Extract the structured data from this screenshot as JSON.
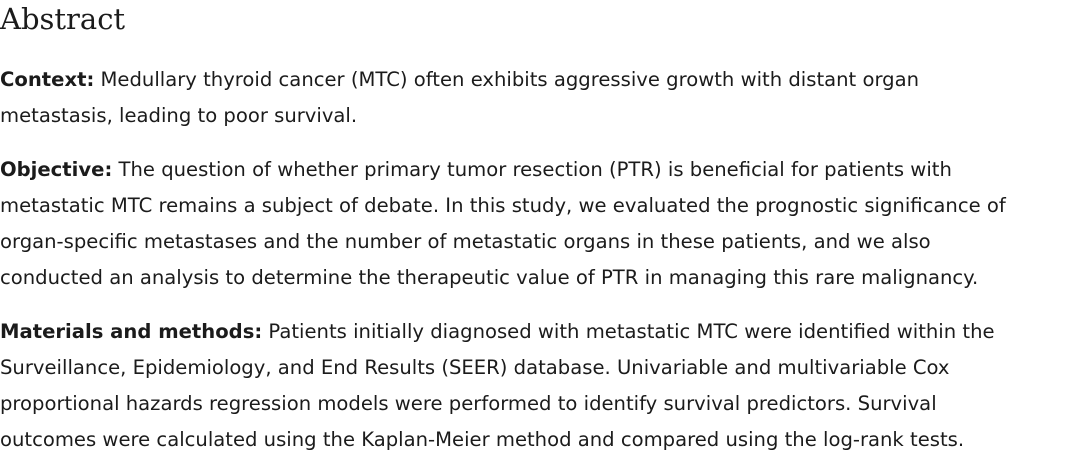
{
  "heading": "Abstract",
  "sections": {
    "context": {
      "label": "Context:",
      "lines": [
        " Medullary thyroid cancer (MTC) often exhibits aggressive growth with distant organ",
        "metastasis, leading to poor survival."
      ]
    },
    "objective": {
      "label": "Objective:",
      "lines": [
        " The question of whether primary tumor resection (PTR) is beneficial for patients with",
        "metastatic MTC remains a subject of debate. In this study, we evaluated the prognostic significance of",
        "organ-specific metastases and the number of metastatic organs in these patients, and we also",
        "conducted an analysis to determine the therapeutic value of PTR in managing this rare malignancy."
      ]
    },
    "methods": {
      "label": "Materials and methods:",
      "lines": [
        " Patients initially diagnosed with metastatic MTC were identified within the",
        "Surveillance, Epidemiology, and End Results (SEER) database. Univariable and multivariable Cox",
        "proportional hazards regression models were performed to identify survival predictors. Survival",
        "outcomes were calculated using the Kaplan-Meier method and compared using the log-rank tests."
      ]
    }
  }
}
